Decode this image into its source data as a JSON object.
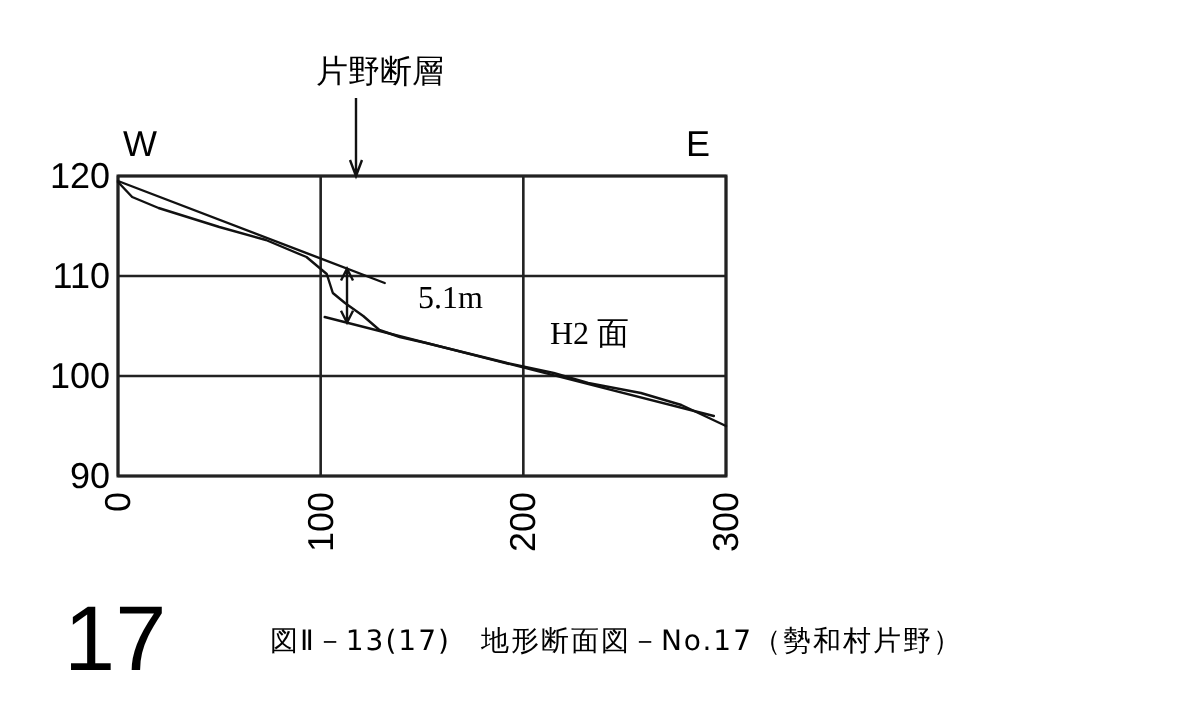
{
  "chart_data": {
    "type": "line",
    "title": "図Ⅱ－13(17)　地形断面図－No.17（勢和村片野）",
    "xlim": [
      0,
      300
    ],
    "xticks": [
      0,
      100,
      200,
      300
    ],
    "ylim": [
      90,
      120
    ],
    "yticks": [
      90,
      100,
      110,
      120
    ],
    "grid": true,
    "series": [
      {
        "color": "#111111",
        "x": [
          0,
          7,
          20,
          50,
          73,
          93,
          103,
          106,
          112,
          121,
          129,
          139,
          152,
          172,
          192,
          215,
          232,
          258,
          278,
          300
        ],
        "values": [
          119.4,
          117.9,
          116.8,
          114.9,
          113.6,
          111.9,
          110.2,
          108.3,
          107.3,
          106,
          104.6,
          103.9,
          103.3,
          102.3,
          101.3,
          100.3,
          99.3,
          98.3,
          97.1,
          95
        ]
      },
      {
        "color": "#111111",
        "x": [
          0,
          131.6
        ],
        "values": [
          119.5,
          109.3
        ]
      },
      {
        "color": "#111111",
        "x": [
          102,
          294
        ],
        "values": [
          105.9,
          96
        ]
      }
    ],
    "annotations": [
      "W",
      "E",
      "片野断層",
      {
        "text": "5.1m",
        "x": 113,
        "y": 107.8
      },
      "H2 面",
      "17"
    ]
  }
}
